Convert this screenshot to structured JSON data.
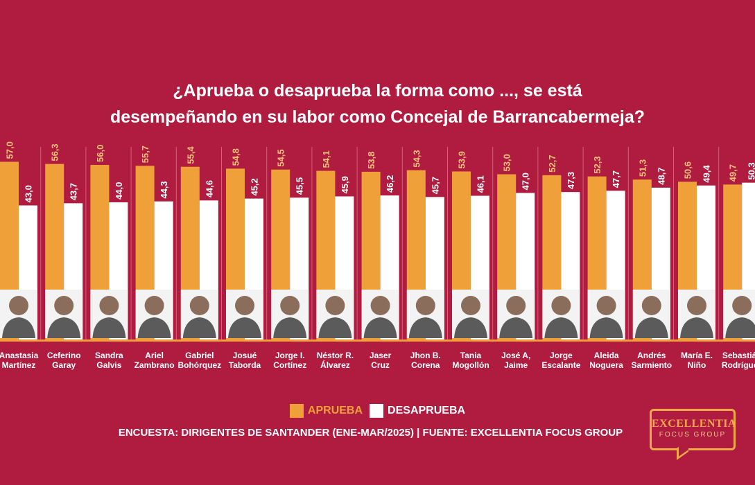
{
  "title_line1": "¿Aprueba o desaprueba la forma como ..., se está",
  "title_line2": "desempeñando en su labor como Concejal de Barrancabermeja?",
  "legend": {
    "approve": "APRUEBA",
    "disapprove": "DESAPRUEBA"
  },
  "source": "ENCUESTA: DIRIGENTES DE SANTANDER (ENE-MAR/2025) | FUENTE: EXCELLENTIA FOCUS GROUP",
  "logo": {
    "line1": "EXCELLENTIA",
    "line2": "FOCUS GROUP"
  },
  "colors": {
    "background": "#b01c40",
    "approve": "#f0a038",
    "disapprove": "#ffffff",
    "divider": "#d4607a"
  },
  "chart_data": {
    "type": "bar",
    "categories": [
      "Anastasia Martínez",
      "Ceferino Garay",
      "Sandra Galvis",
      "Ariel Zambrano",
      "Gabriel Bohórquez",
      "Josué Taborda",
      "Jorge I. Cortínez",
      "Néstor R. Álvarez",
      "Jaser Cruz",
      "Jhon B. Corena",
      "Tania Mogollón",
      "José A. Jaime",
      "Jorge Escalante",
      "Aleida Noguera",
      "Andrés Sarmiento",
      "María E. Niño",
      "Sebastián Rodríguez"
    ],
    "category_lines": [
      [
        "Anastasia",
        "Martínez"
      ],
      [
        "Ceferino",
        "Garay"
      ],
      [
        "Sandra",
        "Galvis"
      ],
      [
        "Ariel",
        "Zambrano"
      ],
      [
        "Gabriel",
        "Bohórquez"
      ],
      [
        "Josué",
        "Taborda"
      ],
      [
        "Jorge I.",
        "Cortínez"
      ],
      [
        "Néstor R.",
        "Álvarez"
      ],
      [
        "Jaser",
        "Cruz"
      ],
      [
        "Jhon B.",
        "Corena"
      ],
      [
        "Tania",
        "Mogollón"
      ],
      [
        "José A,",
        "Jaime"
      ],
      [
        "Jorge",
        "Escalante"
      ],
      [
        "Aleida",
        "Noguera"
      ],
      [
        "Andrés",
        "Sarmiento"
      ],
      [
        "María E.",
        "Niño"
      ],
      [
        "Sebastián",
        "Rodríguez"
      ]
    ],
    "series": [
      {
        "name": "APRUEBA",
        "values": [
          57.0,
          56.3,
          56.0,
          55.7,
          55.4,
          54.8,
          54.5,
          54.1,
          53.8,
          54.3,
          53.9,
          53.0,
          52.7,
          52.3,
          51.3,
          50.6,
          49.7
        ]
      },
      {
        "name": "DESAPRUEBA",
        "values": [
          43.0,
          43.7,
          44.0,
          44.3,
          44.6,
          45.2,
          45.5,
          45.9,
          46.2,
          45.7,
          46.1,
          47.0,
          47.3,
          47.7,
          48.7,
          49.4,
          50.3
        ]
      }
    ],
    "data_labels": [
      [
        "57,0",
        "56,3",
        "56,0",
        "55,7",
        "55,4",
        "54,8",
        "54,5",
        "54,1",
        "53,8",
        "54,3",
        "53,9",
        "53,0",
        "52,7",
        "52,3",
        "51,3",
        "50,6",
        "49,7"
      ],
      [
        "43,0",
        "43,7",
        "44,0",
        "44,3",
        "44,6",
        "45,2",
        "45,5",
        "45,9",
        "46,2",
        "45,7",
        "46,1",
        "47,0",
        "47,3",
        "47,7",
        "48,7",
        "49,4",
        "50,3"
      ]
    ]
  }
}
